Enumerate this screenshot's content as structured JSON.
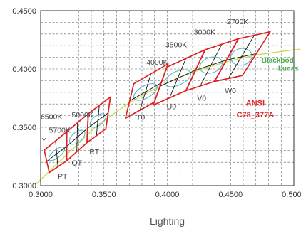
{
  "chart_data": {
    "type": "scatter",
    "xlabel": "Lighting",
    "ylabel": "",
    "xlim": [
      0.3,
      0.5
    ],
    "ylim": [
      0.3,
      0.45
    ],
    "xticks": [
      "0.3000",
      "0.3500",
      "0.4000",
      "0.4500",
      "0.5000"
    ],
    "yticks": [
      "0.3000",
      "0.3500",
      "0.4000",
      "0.4500"
    ],
    "grid": true,
    "colors": {
      "quadrangle": "#e02020",
      "locus": "#c8d94a",
      "ellipse": "#5ab4c8",
      "grid": "#222222",
      "annotation": "#e02020",
      "locus_label": "#4caf50"
    },
    "blackbody_locus": [
      [
        0.296,
        0.301
      ],
      [
        0.32,
        0.326
      ],
      [
        0.345,
        0.352
      ],
      [
        0.37,
        0.371
      ],
      [
        0.39,
        0.383
      ],
      [
        0.41,
        0.393
      ],
      [
        0.43,
        0.401
      ],
      [
        0.45,
        0.407
      ],
      [
        0.47,
        0.412
      ],
      [
        0.49,
        0.415
      ],
      [
        0.505,
        0.417
      ]
    ],
    "blackbody_label": [
      "Blackbod",
      "Lucas"
    ],
    "annotation": [
      "ANSI",
      "C78_377A"
    ],
    "cct_labels": [
      {
        "text": "6500K",
        "at": [
          0.3,
          0.357
        ]
      },
      {
        "text": "5000K",
        "at": [
          0.3245,
          0.3584
        ]
      },
      {
        "text": "5700K",
        "at": [
          0.3065,
          0.3455
        ]
      },
      {
        "text": "4000K",
        "at": [
          0.3835,
          0.4037
        ]
      },
      {
        "text": "3500K",
        "at": [
          0.3985,
          0.4187
        ]
      },
      {
        "text": "3000K",
        "at": [
          0.421,
          0.4295
        ]
      },
      {
        "text": "2700K",
        "at": [
          0.447,
          0.4385
        ]
      }
    ],
    "step_labels": [
      {
        "text": "PT",
        "at": [
          0.3135,
          0.3057
        ]
      },
      {
        "text": "QT",
        "at": [
          0.3245,
          0.3174
        ]
      },
      {
        "text": "RT",
        "at": [
          0.3385,
          0.3269
        ]
      },
      {
        "text": "T0",
        "at": [
          0.3755,
          0.3564
        ]
      },
      {
        "text": "U0",
        "at": [
          0.3995,
          0.3654
        ]
      },
      {
        "text": "V0",
        "at": [
          0.4235,
          0.3729
        ]
      },
      {
        "text": "W0",
        "at": [
          0.4455,
          0.3792
        ]
      }
    ],
    "quadrangles": [
      {
        "name": "6500K",
        "corners": [
          [
            0.3028,
            0.3304
          ],
          [
            0.3207,
            0.3462
          ],
          [
            0.3205,
            0.3212
          ],
          [
            0.3068,
            0.3113
          ]
        ]
      },
      {
        "name": "5700K",
        "corners": [
          [
            0.3207,
            0.3462
          ],
          [
            0.3376,
            0.3616
          ],
          [
            0.3366,
            0.3369
          ],
          [
            0.3205,
            0.3212
          ]
        ]
      },
      {
        "name": "5000K",
        "corners": [
          [
            0.3376,
            0.3616
          ],
          [
            0.3551,
            0.376
          ],
          [
            0.3515,
            0.3487
          ],
          [
            0.3366,
            0.3369
          ]
        ]
      },
      {
        "name": "4000K",
        "corners": [
          [
            0.3736,
            0.3874
          ],
          [
            0.4006,
            0.4044
          ],
          [
            0.3898,
            0.3716
          ],
          [
            0.367,
            0.3578
          ]
        ]
      },
      {
        "name": "3500K",
        "corners": [
          [
            0.3996,
            0.4015
          ],
          [
            0.4299,
            0.4165
          ],
          [
            0.4147,
            0.3814
          ],
          [
            0.3889,
            0.369
          ]
        ]
      },
      {
        "name": "3000K",
        "corners": [
          [
            0.4299,
            0.4165
          ],
          [
            0.4562,
            0.426
          ],
          [
            0.4373,
            0.3893
          ],
          [
            0.4147,
            0.3814
          ]
        ]
      },
      {
        "name": "2700K",
        "corners": [
          [
            0.4562,
            0.426
          ],
          [
            0.4813,
            0.4319
          ],
          [
            0.4593,
            0.3944
          ],
          [
            0.4373,
            0.3893
          ]
        ]
      }
    ]
  }
}
